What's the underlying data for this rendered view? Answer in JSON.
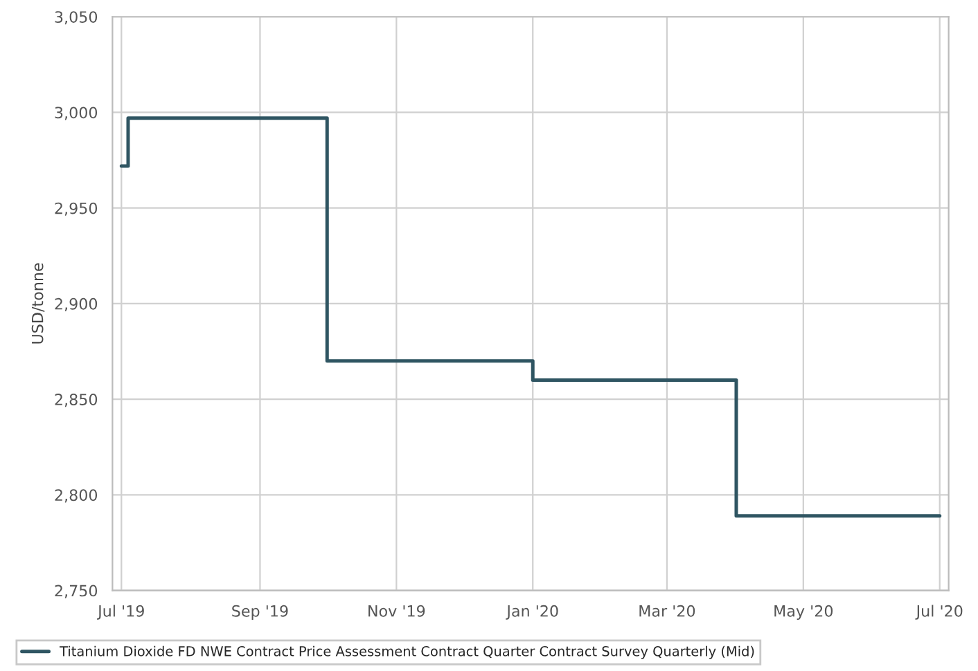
{
  "chart_data": {
    "type": "step",
    "ylabel": "USD/tonne",
    "x": [
      "2019-07-01",
      "2019-07-04",
      "2019-10-01",
      "2020-01-01",
      "2020-04-01",
      "2020-07-01"
    ],
    "series": [
      {
        "name": "Titanium Dioxide FD NWE Contract Price Assessment Contract Quarter Contract Survey Quarterly (Mid)",
        "color": "#2f5562",
        "values": [
          2972,
          2997,
          2870,
          2860,
          2789,
          2789
        ]
      }
    ],
    "xlim": [
      "2019-06-27",
      "2020-07-05"
    ],
    "xticks": [
      {
        "value": "2019-07-01",
        "label": "Jul '19"
      },
      {
        "value": "2019-09-01",
        "label": "Sep '19"
      },
      {
        "value": "2019-11-01",
        "label": "Nov '19"
      },
      {
        "value": "2020-01-01",
        "label": "Jan '20"
      },
      {
        "value": "2020-03-01",
        "label": "Mar '20"
      },
      {
        "value": "2020-05-01",
        "label": "May '20"
      },
      {
        "value": "2020-07-01",
        "label": "Jul '20"
      }
    ],
    "ylim": [
      2750,
      3050
    ],
    "yticks": [
      {
        "value": 2750,
        "label": "2,750"
      },
      {
        "value": 2800,
        "label": "2,800"
      },
      {
        "value": 2850,
        "label": "2,850"
      },
      {
        "value": 2900,
        "label": "2,900"
      },
      {
        "value": 2950,
        "label": "2,950"
      },
      {
        "value": 3000,
        "label": "3,000"
      },
      {
        "value": 3050,
        "label": "3,050"
      }
    ],
    "grid": true,
    "legend": "bottom",
    "line_style": "solid"
  }
}
